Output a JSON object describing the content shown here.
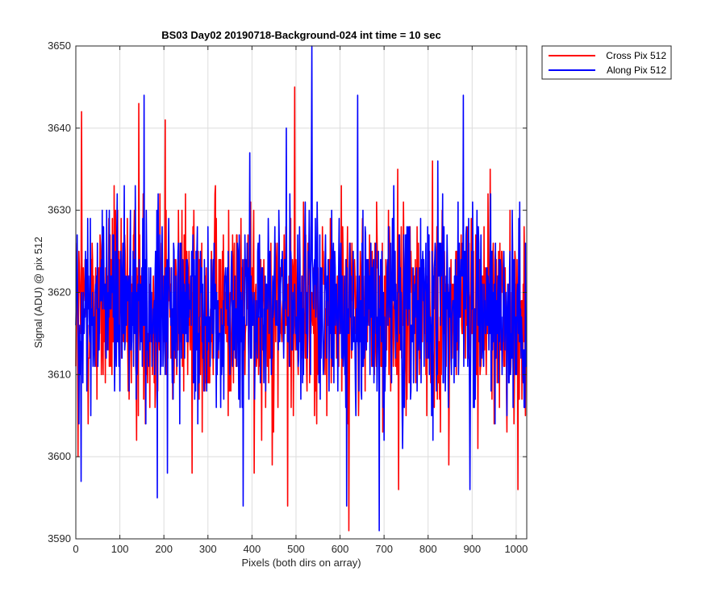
{
  "chart_data": {
    "type": "line",
    "title": "BS03 Day02 20190718-Background-024 int time = 10 sec",
    "xlabel": "Pixels (both dirs on array)",
    "ylabel": "Signal (ADU) @ pix 512",
    "xlim": [
      0,
      1024
    ],
    "ylim": [
      3590,
      3650
    ],
    "xticks": [
      0,
      100,
      200,
      300,
      400,
      500,
      600,
      700,
      800,
      900,
      1000
    ],
    "yticks": [
      3590,
      3600,
      3610,
      3620,
      3630,
      3640,
      3650
    ],
    "grid": true,
    "legend_position": "outside-top-right",
    "series": [
      {
        "name": "Cross Pix 512",
        "color": "#ff0000",
        "style": "noisy-trace",
        "n_points": 1024,
        "mean": 3618,
        "std": 6.2,
        "extremes": [
          {
            "x": 5,
            "y": 3600
          },
          {
            "x": 13,
            "y": 3642
          },
          {
            "x": 143,
            "y": 3643
          },
          {
            "x": 203,
            "y": 3641
          },
          {
            "x": 264,
            "y": 3598
          },
          {
            "x": 405,
            "y": 3598
          },
          {
            "x": 481,
            "y": 3594
          },
          {
            "x": 497,
            "y": 3645
          },
          {
            "x": 620,
            "y": 3591
          },
          {
            "x": 627,
            "y": 3626
          },
          {
            "x": 733,
            "y": 3596
          },
          {
            "x": 1004,
            "y": 3596
          }
        ]
      },
      {
        "name": "Along Pix 512",
        "color": "#0000ff",
        "style": "noisy-trace",
        "n_points": 1024,
        "mean": 3618,
        "std": 6.0,
        "extremes": [
          {
            "x": 12,
            "y": 3597
          },
          {
            "x": 155,
            "y": 3644
          },
          {
            "x": 185,
            "y": 3595
          },
          {
            "x": 380,
            "y": 3594
          },
          {
            "x": 478,
            "y": 3640
          },
          {
            "x": 536,
            "y": 3650
          },
          {
            "x": 615,
            "y": 3594
          },
          {
            "x": 640,
            "y": 3644
          },
          {
            "x": 689,
            "y": 3591
          },
          {
            "x": 880,
            "y": 3644
          },
          {
            "x": 895,
            "y": 3596
          }
        ]
      }
    ]
  }
}
